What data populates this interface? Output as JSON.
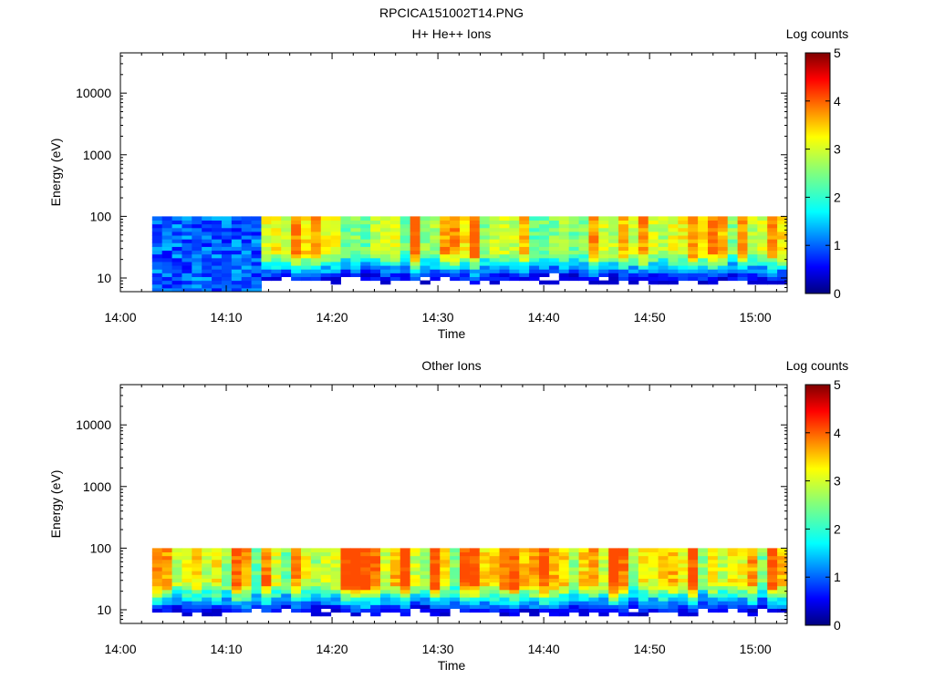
{
  "page": {
    "title": "RPCICA151002T14.PNG"
  },
  "colors": {
    "colormap": [
      "#00007f",
      "#0000ff",
      "#007fff",
      "#00ffff",
      "#7fff7f",
      "#ffff00",
      "#ff7f00",
      "#ff0000",
      "#7f0000"
    ]
  },
  "chart_data": [
    {
      "type": "heatmap",
      "title": "H+ He++ Ions",
      "xlabel": "Time",
      "ylabel": "Energy (eV)",
      "x_ticks": [
        "14:00",
        "14:10",
        "14:20",
        "14:30",
        "14:40",
        "14:50",
        "15:00"
      ],
      "y_ticks": [
        "10",
        "100",
        "1000",
        "10000"
      ],
      "y_scale": "log",
      "xlim": [
        "14:00",
        "15:03"
      ],
      "ylim": [
        6,
        45000
      ],
      "colorbar": {
        "label": "Log counts",
        "ticks": [
          "0",
          "1",
          "2",
          "3",
          "4",
          "5"
        ],
        "range": [
          0,
          5
        ]
      },
      "data_time_range": [
        "14:03",
        "15:03"
      ],
      "data_energy_range": [
        6,
        100
      ],
      "low_count_period": [
        "14:03",
        "14:13"
      ],
      "peak_band_eV": [
        25,
        100
      ],
      "typical_peak_log_counts": 3.5,
      "max_log_counts": 3.9
    },
    {
      "type": "heatmap",
      "title": "Other Ions",
      "xlabel": "Time",
      "ylabel": "Energy (eV)",
      "x_ticks": [
        "14:00",
        "14:10",
        "14:20",
        "14:30",
        "14:40",
        "14:50",
        "15:00"
      ],
      "y_ticks": [
        "10",
        "100",
        "1000",
        "10000"
      ],
      "y_scale": "log",
      "xlim": [
        "14:00",
        "15:03"
      ],
      "ylim": [
        6,
        45000
      ],
      "colorbar": {
        "label": "Log counts",
        "ticks": [
          "0",
          "1",
          "2",
          "3",
          "4",
          "5"
        ],
        "range": [
          0,
          5
        ]
      },
      "data_time_range": [
        "14:03",
        "15:03"
      ],
      "data_energy_range": [
        6,
        100
      ],
      "peak_band_eV": [
        25,
        100
      ],
      "typical_peak_log_counts": 3.6,
      "max_log_counts": 4.0
    }
  ]
}
